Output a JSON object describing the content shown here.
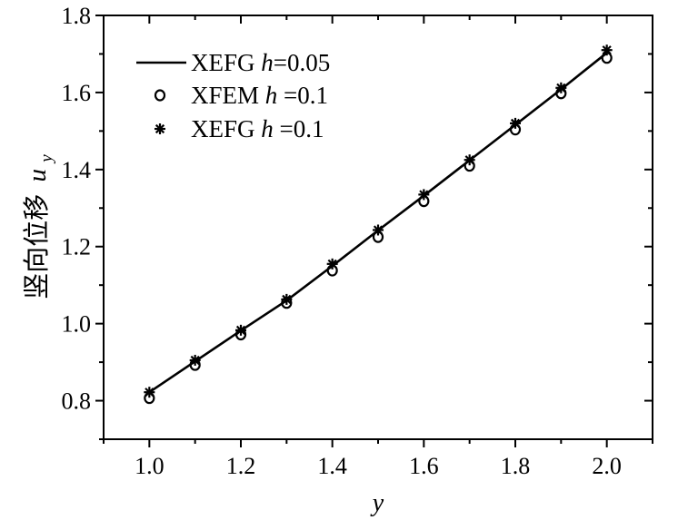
{
  "chart_data": {
    "type": "line",
    "xlabel": "y",
    "ylabel_cjk": "竖向位移",
    "ylabel_var": "u",
    "ylabel_sub": "y",
    "xlim": [
      0.9,
      2.1
    ],
    "ylim": [
      0.7,
      1.8
    ],
    "xticks": [
      1.0,
      1.2,
      1.4,
      1.6,
      1.8,
      2.0
    ],
    "xtick_labels": [
      "1.0",
      "1.2",
      "1.4",
      "1.6",
      "1.8",
      "2.0"
    ],
    "yticks": [
      0.8,
      1.0,
      1.2,
      1.4,
      1.6,
      1.8
    ],
    "ytick_labels": [
      "0.8",
      "1.0",
      "1.2",
      "1.4",
      "1.6",
      "1.8"
    ],
    "grid": false,
    "legend_position": "top-left",
    "series": [
      {
        "name": "XEFG h=0.05",
        "legend_prefix": "XEFG ",
        "legend_var": "h",
        "legend_suffix": "=0.05",
        "marker": "line",
        "x": [
          1.0,
          1.1,
          1.2,
          1.3,
          1.4,
          1.5,
          1.6,
          1.7,
          1.8,
          1.9,
          2.0
        ],
        "y": [
          0.822,
          0.902,
          0.982,
          1.06,
          1.15,
          1.242,
          1.332,
          1.424,
          1.516,
          1.608,
          1.703
        ]
      },
      {
        "name": "XFEM h =0.1",
        "legend_prefix": "XFEM ",
        "legend_var": "h",
        "legend_suffix": " =0.1",
        "marker": "circle",
        "x": [
          1.0,
          1.1,
          1.2,
          1.3,
          1.4,
          1.5,
          1.6,
          1.7,
          1.8,
          1.9,
          2.0
        ],
        "y": [
          0.807,
          0.893,
          0.972,
          1.054,
          1.138,
          1.225,
          1.318,
          1.41,
          1.504,
          1.598,
          1.69
        ]
      },
      {
        "name": "XEFG h =0.1",
        "legend_prefix": "XEFG ",
        "legend_var": "h",
        "legend_suffix": " =0.1",
        "marker": "asterisk",
        "x": [
          1.0,
          1.1,
          1.2,
          1.3,
          1.4,
          1.5,
          1.6,
          1.7,
          1.8,
          1.9,
          2.0
        ],
        "y": [
          0.822,
          0.905,
          0.983,
          1.063,
          1.155,
          1.243,
          1.335,
          1.425,
          1.52,
          1.612,
          1.71
        ]
      }
    ]
  },
  "colors": {
    "axis": "#000000",
    "series": "#000000",
    "background": "#ffffff"
  }
}
